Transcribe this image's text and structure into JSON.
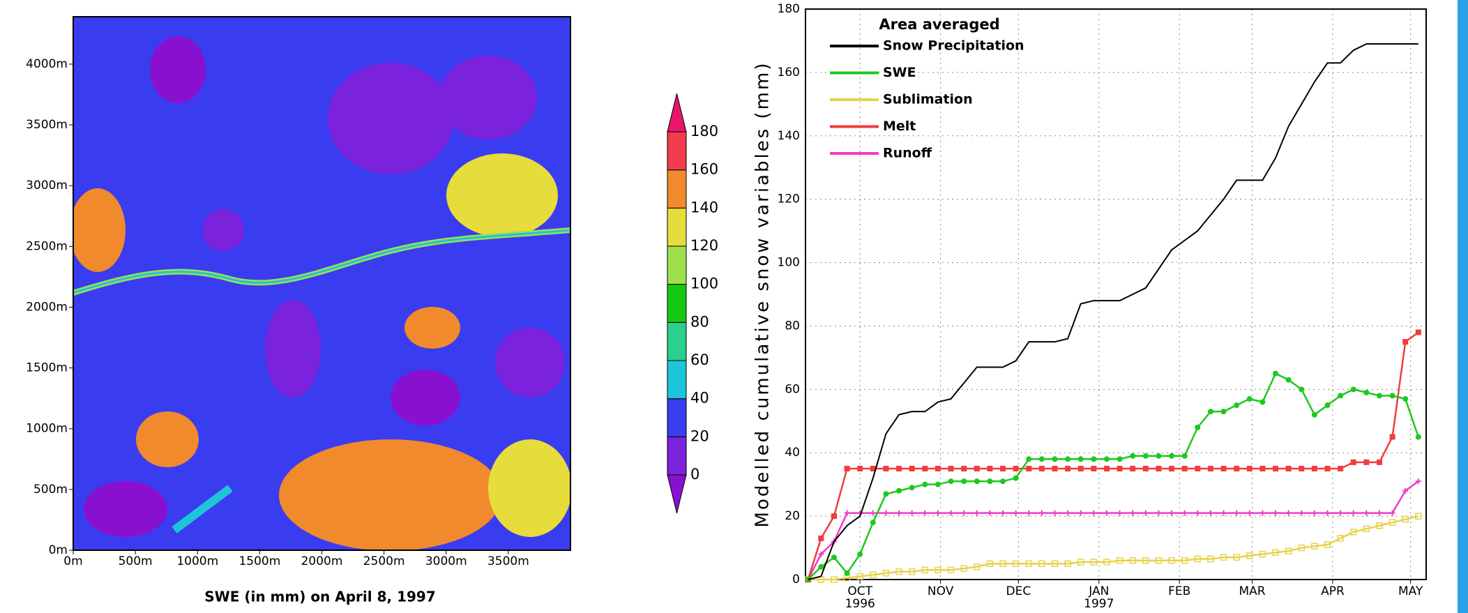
{
  "chart_data": [
    {
      "type": "heatmap",
      "title": "SWE (in mm) on April 8, 1997",
      "xlim": [
        0,
        4000
      ],
      "xticks": [
        {
          "value": 0,
          "label": "0m"
        },
        {
          "value": 500,
          "label": "500m"
        },
        {
          "value": 1000,
          "label": "1000m"
        },
        {
          "value": 1500,
          "label": "1500m"
        },
        {
          "value": 2000,
          "label": "2000m"
        },
        {
          "value": 2500,
          "label": "2500m"
        },
        {
          "value": 3000,
          "label": "3000m"
        },
        {
          "value": 3500,
          "label": "3500m"
        }
      ],
      "ylim": [
        0,
        4390
      ],
      "yticks": [
        {
          "value": 0,
          "label": "0m"
        },
        {
          "value": 500,
          "label": "500m"
        },
        {
          "value": 1000,
          "label": "1000m"
        },
        {
          "value": 1500,
          "label": "1500m"
        },
        {
          "value": 2000,
          "label": "2000m"
        },
        {
          "value": 2500,
          "label": "2500m"
        },
        {
          "value": 3000,
          "label": "3000m"
        },
        {
          "value": 3500,
          "label": "3500m"
        },
        {
          "value": 4000,
          "label": "4000m"
        }
      ],
      "colorbar": {
        "ticks": [
          0,
          20,
          40,
          60,
          80,
          100,
          120,
          140,
          160,
          180
        ],
        "colors": [
          "#8a10d0",
          "#7a22dc",
          "#3a3cf0",
          "#1ec4d8",
          "#2ad08c",
          "#14c814",
          "#9ee04c",
          "#e6dc3c",
          "#f08a2c",
          "#f03c4c",
          "#e8146e"
        ]
      }
    },
    {
      "type": "line",
      "y_label": "Modelled cumulative snow variables (mm)",
      "legend_title": "Area averaged",
      "legend": "upper left",
      "grid": true,
      "xlim": [
        -21,
        218
      ],
      "xticks": [
        {
          "value": 0,
          "label": "OCT"
        },
        {
          "value": 31,
          "label": "NOV"
        },
        {
          "value": 61,
          "label": "DEC"
        },
        {
          "value": 92,
          "label": "JAN"
        },
        {
          "value": 123,
          "label": "FEB"
        },
        {
          "value": 151,
          "label": "MAR"
        },
        {
          "value": 182,
          "label": "APR"
        },
        {
          "value": 212,
          "label": "MAY"
        }
      ],
      "x_year_labels": [
        {
          "value": 0,
          "label": "1996"
        },
        {
          "value": 92,
          "label": "1997"
        }
      ],
      "ylim": [
        0,
        180
      ],
      "yticks": [
        0,
        20,
        40,
        60,
        80,
        100,
        120,
        140,
        160,
        180
      ],
      "x": [
        -20,
        -15,
        -10,
        -5,
        0,
        5,
        10,
        15,
        20,
        25,
        30,
        35,
        40,
        45,
        50,
        55,
        60,
        65,
        70,
        75,
        80,
        85,
        90,
        95,
        100,
        105,
        110,
        115,
        120,
        125,
        130,
        135,
        140,
        145,
        150,
        155,
        160,
        165,
        170,
        175,
        180,
        185,
        190,
        195,
        200,
        205,
        210,
        215
      ],
      "series": [
        {
          "name": "Snow Precipitation",
          "color": "#000000",
          "marker": "none",
          "values": [
            0,
            1,
            12,
            17,
            20,
            32,
            46,
            52,
            53,
            53,
            56,
            57,
            62,
            67,
            67,
            67,
            69,
            75,
            75,
            75,
            76,
            87,
            88,
            88,
            88,
            90,
            92,
            98,
            104,
            107,
            110,
            115,
            120,
            126,
            126,
            126,
            133,
            143,
            150,
            157,
            163,
            163,
            167,
            169,
            169,
            169,
            169,
            169
          ]
        },
        {
          "name": "SWE",
          "color": "#1ec81e",
          "marker": "circle",
          "values": [
            0,
            4,
            7,
            2,
            8,
            18,
            27,
            28,
            29,
            30,
            30,
            31,
            31,
            31,
            31,
            31,
            32,
            38,
            38,
            38,
            38,
            38,
            38,
            38,
            38,
            39,
            39,
            39,
            39,
            39,
            48,
            53,
            53,
            55,
            57,
            56,
            65,
            63,
            60,
            52,
            55,
            58,
            60,
            59,
            58,
            58,
            57,
            45
          ]
        },
        {
          "name": "Sublimation",
          "color": "#e6d24a",
          "marker": "open-square",
          "values": [
            0,
            0,
            0,
            0.5,
            1,
            1.5,
            2,
            2.5,
            2.5,
            3,
            3,
            3,
            3.5,
            4,
            5,
            5,
            5,
            5,
            5,
            5,
            5,
            5.5,
            5.5,
            5.5,
            6,
            6,
            6,
            6,
            6,
            6,
            6.5,
            6.5,
            7,
            7,
            7.5,
            8,
            8.5,
            9,
            10,
            10.5,
            11,
            13,
            15,
            16,
            17,
            18,
            19,
            20
          ]
        },
        {
          "name": "Melt",
          "color": "#f03c3c",
          "marker": "square",
          "values": [
            0,
            13,
            20,
            35,
            35,
            35,
            35,
            35,
            35,
            35,
            35,
            35,
            35,
            35,
            35,
            35,
            35,
            35,
            35,
            35,
            35,
            35,
            35,
            35,
            35,
            35,
            35,
            35,
            35,
            35,
            35,
            35,
            35,
            35,
            35,
            35,
            35,
            35,
            35,
            35,
            35,
            35,
            37,
            37,
            37,
            45,
            75,
            78
          ]
        },
        {
          "name": "Runoff",
          "color": "#f03cc8",
          "marker": "plus",
          "values": [
            0,
            8,
            12,
            21,
            21,
            21,
            21,
            21,
            21,
            21,
            21,
            21,
            21,
            21,
            21,
            21,
            21,
            21,
            21,
            21,
            21,
            21,
            21,
            21,
            21,
            21,
            21,
            21,
            21,
            21,
            21,
            21,
            21,
            21,
            21,
            21,
            21,
            21,
            21,
            21,
            21,
            21,
            21,
            21,
            21,
            21,
            28,
            31
          ]
        }
      ]
    }
  ]
}
